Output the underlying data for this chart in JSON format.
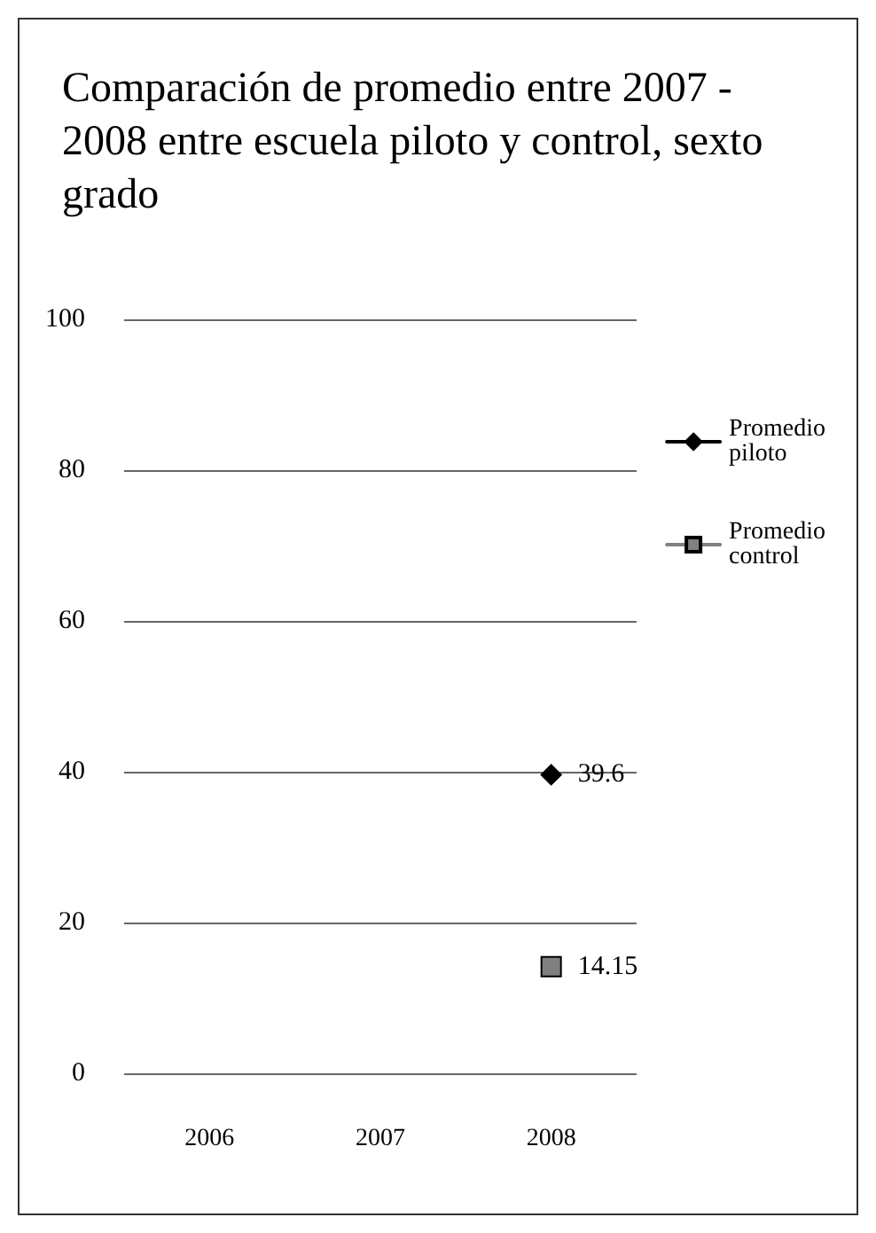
{
  "chart_data": {
    "type": "line",
    "title": "Comparación de promedio entre 2007 - 2008 entre escuela piloto y control, sexto grado",
    "categories": [
      "2006",
      "2007",
      "2008"
    ],
    "series": [
      {
        "name": "Promedio piloto",
        "color": "#000000",
        "marker": "diamond",
        "values": [
          null,
          null,
          39.6
        ]
      },
      {
        "name": "Promedio control",
        "color": "#808080",
        "marker": "square",
        "values": [
          null,
          null,
          14.15
        ]
      }
    ],
    "ylim": [
      0,
      100
    ],
    "yticks": [
      0,
      20,
      40,
      60,
      80,
      100
    ],
    "grid": "y",
    "legend": "right",
    "data_labels": true
  }
}
